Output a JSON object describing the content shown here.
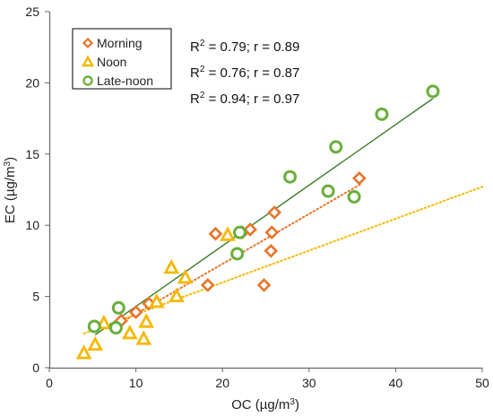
{
  "chart_data": {
    "type": "scatter",
    "xlabel": "OC (µg/m",
    "xlabel_sup": "3",
    "xlabel_end": ")",
    "ylabel": "EC (µg/m",
    "ylabel_sup": "3",
    "ylabel_end": ")",
    "xlim": [
      0,
      50
    ],
    "ylim": [
      0,
      25
    ],
    "xticks": [
      0,
      10,
      20,
      30,
      40,
      50
    ],
    "yticks": [
      0,
      5,
      10,
      15,
      20,
      25
    ],
    "grid": false,
    "legend_position": "top-left",
    "series": [
      {
        "name": "Morning",
        "marker": "diamond",
        "color": "#E8742A",
        "trend_style": "dotted",
        "trend": [
          [
            7.5,
            2.9
          ],
          [
            36.0,
            12.9
          ]
        ],
        "stat_pre": "R",
        "stat_sup": "2",
        "stat_post": " = 0.79; r = 0.89",
        "points": [
          [
            8.3,
            3.3
          ],
          [
            10.0,
            3.9
          ],
          [
            11.5,
            4.5
          ],
          [
            18.3,
            5.8
          ],
          [
            19.2,
            9.4
          ],
          [
            22.3,
            9.5
          ],
          [
            23.2,
            9.7
          ],
          [
            24.8,
            5.8
          ],
          [
            25.6,
            8.2
          ],
          [
            25.7,
            9.5
          ],
          [
            26.0,
            10.9
          ],
          [
            35.8,
            13.3
          ]
        ]
      },
      {
        "name": "Noon",
        "marker": "triangle",
        "color": "#F5B800",
        "trend_style": "dotted",
        "trend": [
          [
            4.0,
            2.4
          ],
          [
            50.0,
            12.7
          ]
        ],
        "stat_pre": "R",
        "stat_sup": "2",
        "stat_post": " = 0.76; r = 0.87",
        "points": [
          [
            4.0,
            1.0
          ],
          [
            5.3,
            1.6
          ],
          [
            6.3,
            3.1
          ],
          [
            9.3,
            2.4
          ],
          [
            10.9,
            2.0
          ],
          [
            11.2,
            3.2
          ],
          [
            12.4,
            4.6
          ],
          [
            14.1,
            7.0
          ],
          [
            14.7,
            5.0
          ],
          [
            15.7,
            6.3
          ],
          [
            20.6,
            9.3
          ]
        ]
      },
      {
        "name": "Late-noon",
        "marker": "circle",
        "color": "#6AAF3D",
        "line_color": "#3A7D26",
        "trend_style": "solid",
        "trend": [
          [
            5.3,
            2.3
          ],
          [
            44.3,
            18.9
          ]
        ],
        "stat_pre": "R",
        "stat_sup": "2",
        "stat_post": " = 0.94; r = 0.97",
        "points": [
          [
            5.2,
            2.9
          ],
          [
            7.7,
            2.8
          ],
          [
            8.0,
            4.2
          ],
          [
            21.7,
            8.0
          ],
          [
            22.0,
            9.5
          ],
          [
            27.8,
            13.4
          ],
          [
            32.2,
            12.4
          ],
          [
            33.1,
            15.5
          ],
          [
            35.2,
            12.0
          ],
          [
            38.4,
            17.8
          ],
          [
            44.3,
            19.4
          ]
        ]
      }
    ]
  }
}
